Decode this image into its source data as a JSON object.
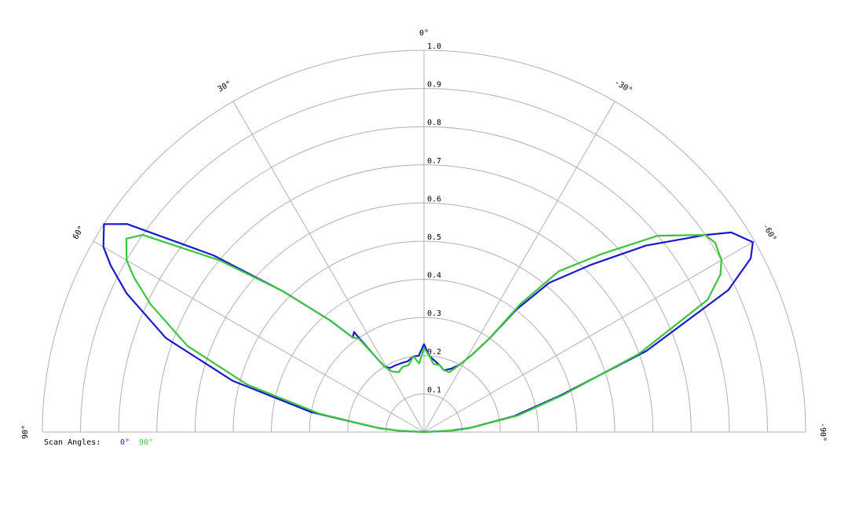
{
  "chart_data": {
    "type": "polar",
    "rlim": [
      0,
      1
    ],
    "rticks": [
      0.1,
      0.2,
      0.3,
      0.4,
      0.5,
      0.6,
      0.7,
      0.8,
      0.9,
      {
        "value": 1,
        "label": "1.0"
      }
    ],
    "xlim": [
      -90,
      90
    ],
    "xticks": [
      {
        "value": -90,
        "label": "-90°"
      },
      {
        "value": -60,
        "label": "-60°"
      },
      {
        "value": -30,
        "label": "-30°"
      },
      {
        "value": 0,
        "label": "0°"
      },
      {
        "value": 30,
        "label": "30°"
      },
      {
        "value": 60,
        "label": "60°"
      },
      {
        "value": 90,
        "label": "90°"
      }
    ],
    "grid": true,
    "legend_title": "Scan Angles:",
    "x": [
      -90,
      -87,
      -85,
      -80,
      -75,
      -70,
      -65,
      -62,
      -60,
      -57,
      -55,
      -50,
      -45,
      -40,
      -37,
      -35,
      -32,
      -28,
      -23,
      -18,
      -13,
      -8,
      -4,
      0,
      4,
      8,
      13,
      18,
      23,
      28,
      31,
      33,
      35,
      37,
      40,
      45,
      50,
      55,
      57,
      60,
      62,
      65,
      70,
      75,
      80,
      85,
      87,
      90
    ],
    "series": [
      {
        "name": "0°",
        "color": "#1a1acc",
        "values": [
          0,
          0.07,
          0.12,
          0.24,
          0.37,
          0.62,
          0.88,
          0.97,
          0.995,
          0.96,
          0.9,
          0.76,
          0.62,
          0.51,
          0.4,
          0.3,
          0.24,
          0.2,
          0.18,
          0.17,
          0.18,
          0.19,
          0.2,
          0.23,
          0.2,
          0.2,
          0.19,
          0.19,
          0.19,
          0.19,
          0.2,
          0.24,
          0.32,
          0.31,
          0.38,
          0.52,
          0.72,
          0.95,
          1.0,
          0.97,
          0.93,
          0.86,
          0.72,
          0.52,
          0.3,
          0.12,
          0.07,
          0
        ]
      },
      {
        "name": "90°",
        "color": "#3dc43d",
        "values": [
          0,
          0.08,
          0.12,
          0.25,
          0.38,
          0.6,
          0.82,
          0.88,
          0.9,
          0.91,
          0.9,
          0.8,
          0.66,
          0.55,
          0.42,
          0.3,
          0.24,
          0.2,
          0.17,
          0.17,
          0.18,
          0.18,
          0.2,
          0.22,
          0.18,
          0.2,
          0.18,
          0.18,
          0.17,
          0.18,
          0.2,
          0.24,
          0.3,
          0.31,
          0.38,
          0.52,
          0.7,
          0.9,
          0.93,
          0.9,
          0.86,
          0.79,
          0.66,
          0.48,
          0.28,
          0.12,
          0.07,
          0
        ]
      }
    ]
  }
}
